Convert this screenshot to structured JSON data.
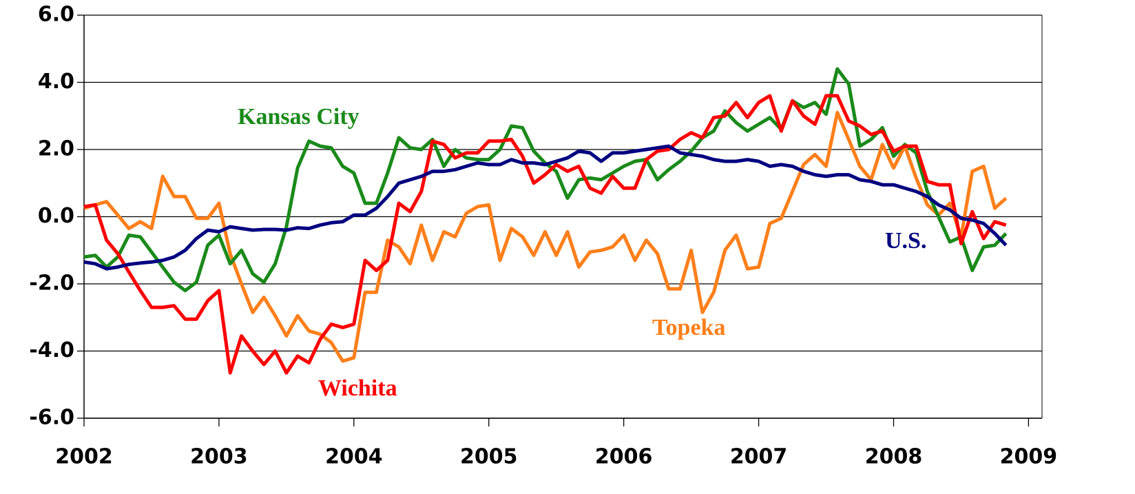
{
  "chart_data": {
    "type": "line",
    "x": [
      2002,
      2002.083,
      2002.167,
      2002.25,
      2002.333,
      2002.417,
      2002.5,
      2002.583,
      2002.667,
      2002.75,
      2002.833,
      2002.917,
      2003,
      2003.083,
      2003.167,
      2003.25,
      2003.333,
      2003.417,
      2003.5,
      2003.583,
      2003.667,
      2003.75,
      2003.833,
      2003.917,
      2004,
      2004.083,
      2004.167,
      2004.25,
      2004.333,
      2004.417,
      2004.5,
      2004.583,
      2004.667,
      2004.75,
      2004.833,
      2004.917,
      2005,
      2005.083,
      2005.167,
      2005.25,
      2005.333,
      2005.417,
      2005.5,
      2005.583,
      2005.667,
      2005.75,
      2005.833,
      2005.917,
      2006,
      2006.083,
      2006.167,
      2006.25,
      2006.333,
      2006.417,
      2006.5,
      2006.583,
      2006.667,
      2006.75,
      2006.833,
      2006.917,
      2007,
      2007.083,
      2007.167,
      2007.25,
      2007.333,
      2007.417,
      2007.5,
      2007.583,
      2007.667,
      2007.75,
      2007.833,
      2007.917,
      2008,
      2008.083,
      2008.167,
      2008.25,
      2008.333,
      2008.417,
      2008.5,
      2008.583,
      2008.667,
      2008.75,
      2008.833
    ],
    "series": [
      {
        "name": "U.S.",
        "color": "#000080",
        "values": [
          -1.35,
          -1.4,
          -1.55,
          -1.5,
          -1.42,
          -1.38,
          -1.35,
          -1.3,
          -1.2,
          -1.0,
          -0.65,
          -0.4,
          -0.45,
          -0.3,
          -0.35,
          -0.4,
          -0.38,
          -0.38,
          -0.4,
          -0.33,
          -0.35,
          -0.25,
          -0.18,
          -0.15,
          0.05,
          0.05,
          0.25,
          0.6,
          1.0,
          1.1,
          1.2,
          1.35,
          1.35,
          1.4,
          1.5,
          1.6,
          1.55,
          1.55,
          1.7,
          1.6,
          1.6,
          1.55,
          1.65,
          1.75,
          1.95,
          1.9,
          1.65,
          1.9,
          1.9,
          1.95,
          2.0,
          2.05,
          2.1,
          1.9,
          1.85,
          1.8,
          1.7,
          1.65,
          1.65,
          1.7,
          1.65,
          1.5,
          1.55,
          1.5,
          1.35,
          1.25,
          1.2,
          1.25,
          1.25,
          1.1,
          1.05,
          0.95,
          0.95,
          0.85,
          0.75,
          0.6,
          0.35,
          0.2,
          -0.05,
          -0.1,
          -0.2,
          -0.5,
          -0.85
        ]
      },
      {
        "name": "Kansas City",
        "color": "#1a8a1a",
        "values": [
          -1.2,
          -1.15,
          -1.5,
          -1.2,
          -0.55,
          -0.6,
          -1.05,
          -1.5,
          -1.95,
          -2.2,
          -1.95,
          -0.85,
          -0.55,
          -1.4,
          -1.0,
          -1.7,
          -1.95,
          -1.4,
          -0.3,
          1.45,
          2.25,
          2.1,
          2.05,
          1.5,
          1.3,
          0.4,
          0.4,
          1.3,
          2.35,
          2.05,
          2.0,
          2.3,
          1.5,
          2.0,
          1.75,
          1.7,
          1.7,
          2.0,
          2.7,
          2.65,
          1.95,
          1.6,
          1.35,
          0.55,
          1.1,
          1.15,
          1.1,
          1.3,
          1.5,
          1.65,
          1.7,
          1.1,
          1.4,
          1.65,
          1.95,
          2.35,
          2.55,
          3.15,
          2.8,
          2.55,
          2.75,
          2.95,
          2.6,
          3.45,
          3.25,
          3.4,
          3.05,
          4.4,
          3.95,
          2.1,
          2.3,
          2.65,
          1.8,
          2.15,
          1.9,
          0.75,
          0.0,
          -0.75,
          -0.6,
          -1.6,
          -0.9,
          -0.85,
          -0.5
        ]
      },
      {
        "name": "Wichita",
        "color": "#ff0000",
        "values": [
          0.3,
          0.35,
          -0.7,
          -1.1,
          -1.65,
          -2.2,
          -2.7,
          -2.7,
          -2.65,
          -3.05,
          -3.05,
          -2.5,
          -2.2,
          -4.65,
          -3.55,
          -4.0,
          -4.4,
          -4.0,
          -4.65,
          -4.15,
          -4.35,
          -3.65,
          -3.2,
          -3.3,
          -3.2,
          -1.3,
          -1.6,
          -1.3,
          0.4,
          0.15,
          0.75,
          2.25,
          2.15,
          1.75,
          1.9,
          1.9,
          2.25,
          2.25,
          2.3,
          1.8,
          1.0,
          1.25,
          1.55,
          1.35,
          1.5,
          0.85,
          0.7,
          1.2,
          0.85,
          0.85,
          1.7,
          1.95,
          2.0,
          2.3,
          2.5,
          2.35,
          2.95,
          3.0,
          3.4,
          2.95,
          3.4,
          3.6,
          2.55,
          3.45,
          3.0,
          2.75,
          3.6,
          3.6,
          2.85,
          2.7,
          2.45,
          2.55,
          1.95,
          2.1,
          2.1,
          1.05,
          0.95,
          0.95,
          -0.8,
          0.15,
          -0.65,
          -0.15,
          -0.25
        ]
      },
      {
        "name": "Topeka",
        "color": "#ff7f1a",
        "values": [
          0.25,
          0.35,
          0.45,
          0.05,
          -0.35,
          -0.15,
          -0.35,
          1.2,
          0.6,
          0.6,
          -0.05,
          -0.05,
          0.4,
          -1.1,
          -2.0,
          -2.85,
          -2.4,
          -2.95,
          -3.55,
          -2.95,
          -3.4,
          -3.5,
          -3.75,
          -4.3,
          -4.2,
          -2.25,
          -2.25,
          -0.7,
          -0.9,
          -1.4,
          -0.25,
          -1.3,
          -0.45,
          -0.6,
          0.1,
          0.3,
          0.35,
          -1.3,
          -0.35,
          -0.6,
          -1.15,
          -0.45,
          -1.15,
          -0.45,
          -1.5,
          -1.05,
          -1.0,
          -0.9,
          -0.55,
          -1.3,
          -0.7,
          -1.1,
          -2.15,
          -2.15,
          -1.0,
          -2.85,
          -2.25,
          -1.0,
          -0.55,
          -1.55,
          -1.5,
          -0.2,
          -0.05,
          0.75,
          1.55,
          1.85,
          1.5,
          3.1,
          2.3,
          1.5,
          1.1,
          2.15,
          1.45,
          2.1,
          1.15,
          0.35,
          0.05,
          0.4,
          -0.6,
          1.35,
          1.5,
          0.25,
          0.55
        ]
      }
    ],
    "xlim": [
      2002,
      2009.1
    ],
    "xticks": [
      2002,
      2003,
      2004,
      2005,
      2006,
      2007,
      2008,
      2009
    ],
    "ylim": [
      -6,
      6
    ],
    "yticks": [
      {
        "value": -6,
        "label": "-6.0"
      },
      {
        "value": -4,
        "label": "-4.0"
      },
      {
        "value": -2,
        "label": "-2.0"
      },
      {
        "value": 0,
        "label": "0.0"
      },
      {
        "value": 2,
        "label": "2.0"
      },
      {
        "value": 4,
        "label": "4.0"
      },
      {
        "value": 6,
        "label": "6.0"
      }
    ],
    "grid": true
  }
}
